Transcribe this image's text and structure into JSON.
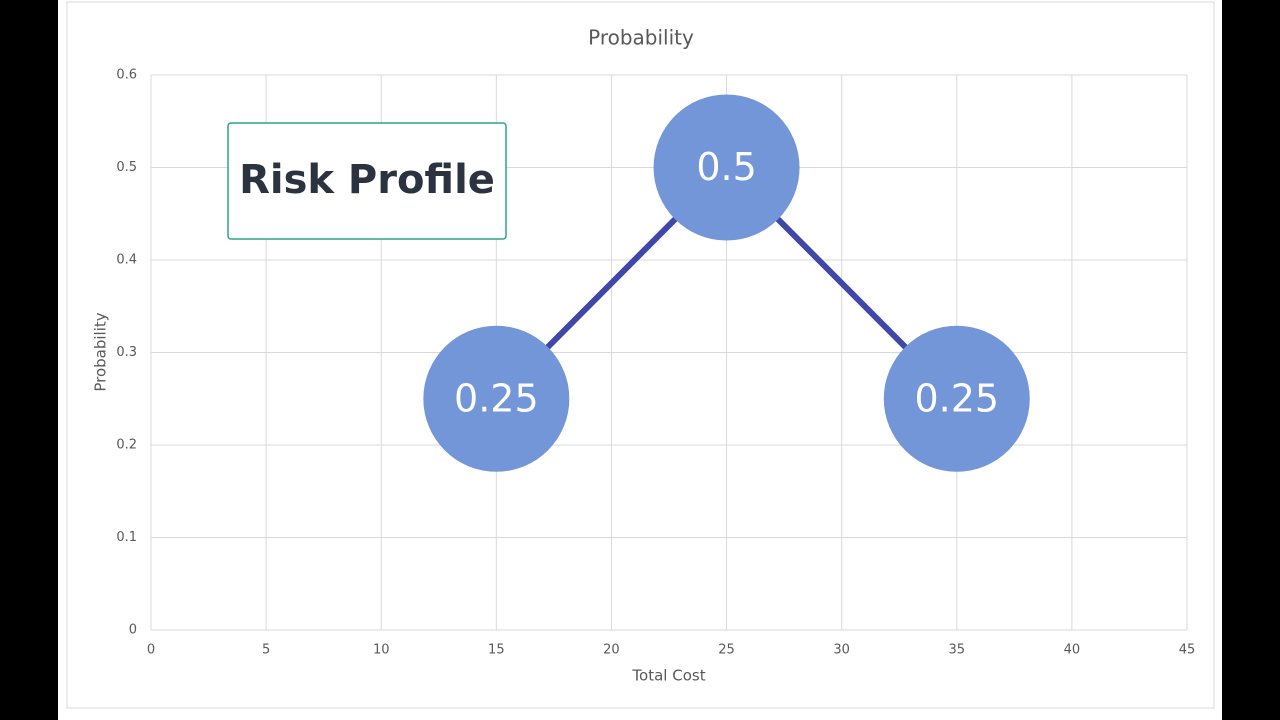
{
  "chart_data": {
    "type": "line",
    "title": "Probability",
    "xlabel": "Total Cost",
    "ylabel": "Probability",
    "annotation": "Risk Profile",
    "x": [
      15,
      25,
      35
    ],
    "series": [
      {
        "name": "Probability",
        "color": "#7396d8",
        "line_color": "#3f48a8",
        "values": [
          0.25,
          0.5,
          0.25
        ]
      }
    ],
    "xlim": [
      0,
      45
    ],
    "xticks": [
      0,
      5,
      10,
      15,
      20,
      25,
      30,
      35,
      40,
      45
    ],
    "ylim": [
      0,
      0.6
    ],
    "yticks": [
      0,
      0.1,
      0.2,
      0.3,
      0.4,
      0.5,
      0.6
    ],
    "grid": true
  }
}
